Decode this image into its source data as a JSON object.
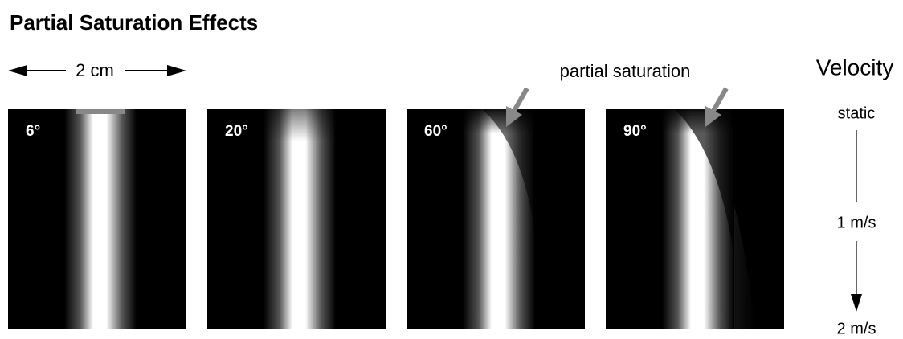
{
  "header": {
    "title": "Partial Saturation Effects"
  },
  "scale_bar": {
    "label": "2 cm"
  },
  "annotation": {
    "label": "partial saturation"
  },
  "panels": [
    {
      "label": "6°"
    },
    {
      "label": "20°"
    },
    {
      "label": "60°"
    },
    {
      "label": "90°"
    }
  ],
  "velocity_axis": {
    "title": "Velocity",
    "labels": [
      "static",
      "1 m/s",
      "2 m/s"
    ]
  }
}
